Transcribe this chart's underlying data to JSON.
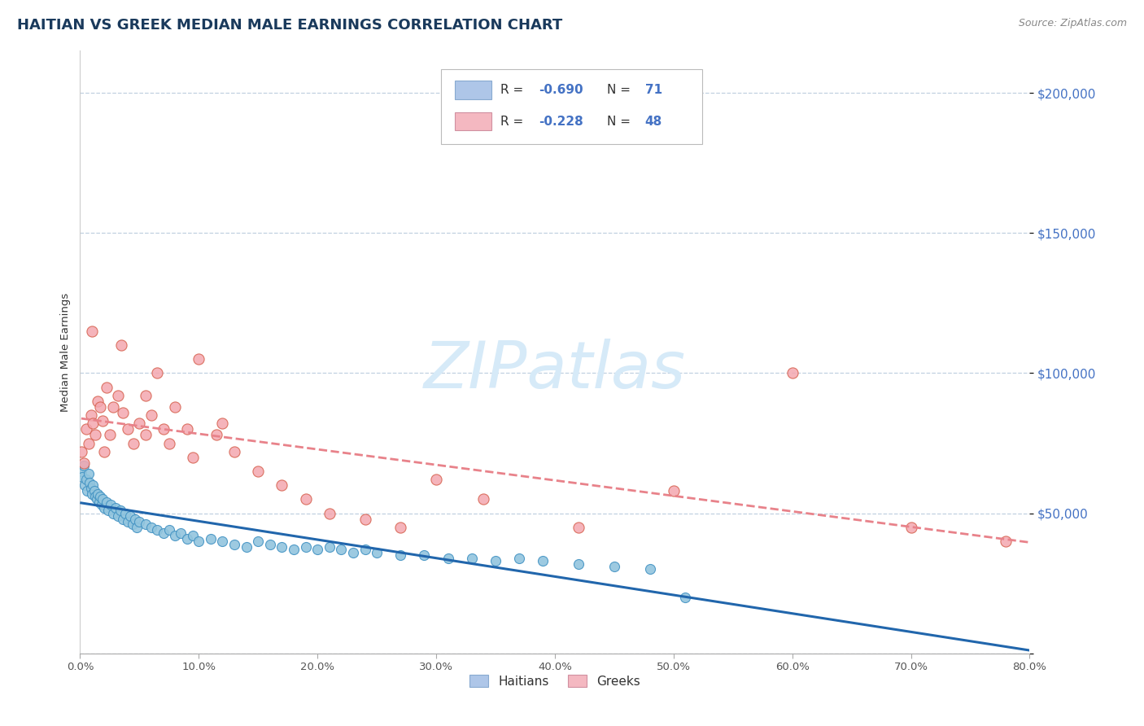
{
  "title": "HAITIAN VS GREEK MEDIAN MALE EARNINGS CORRELATION CHART",
  "source": "Source: ZipAtlas.com",
  "ylabel": "Median Male Earnings",
  "yticks": [
    0,
    50000,
    100000,
    150000,
    200000
  ],
  "ytick_labels": [
    "",
    "$50,000",
    "$100,000",
    "$150,000",
    "$200,000"
  ],
  "xtick_positions": [
    0.0,
    0.1,
    0.2,
    0.3,
    0.4,
    0.5,
    0.6,
    0.7,
    0.8
  ],
  "xtick_labels": [
    "0.0%",
    "10.0%",
    "20.0%",
    "30.0%",
    "40.0%",
    "50.0%",
    "60.0%",
    "70.0%",
    "80.0%"
  ],
  "xmin": 0.0,
  "xmax": 0.8,
  "ymin": 0,
  "ymax": 215000,
  "haitian_color": "#92c5de",
  "haitian_edge": "#4393c3",
  "greek_color": "#f4a7b0",
  "greek_edge": "#d6604d",
  "trendline_haitian_color": "#2166ac",
  "trendline_greek_color": "#e8828a",
  "legend_patch_haitian": "#aec6e8",
  "legend_patch_greek": "#f4b8c1",
  "watermark_color": "#d6eaf8",
  "background_color": "#ffffff",
  "title_color": "#1a3a5c",
  "title_fontsize": 13,
  "source_fontsize": 9,
  "legend_fontsize": 11,
  "tick_label_color_y": "#4472c4",
  "grid_color": "#c0d0e0",
  "haitian_x": [
    0.001,
    0.002,
    0.003,
    0.004,
    0.005,
    0.006,
    0.007,
    0.008,
    0.009,
    0.01,
    0.011,
    0.012,
    0.013,
    0.014,
    0.015,
    0.016,
    0.017,
    0.018,
    0.019,
    0.02,
    0.022,
    0.024,
    0.026,
    0.028,
    0.03,
    0.032,
    0.034,
    0.036,
    0.038,
    0.04,
    0.042,
    0.044,
    0.046,
    0.048,
    0.05,
    0.055,
    0.06,
    0.065,
    0.07,
    0.075,
    0.08,
    0.085,
    0.09,
    0.095,
    0.1,
    0.11,
    0.12,
    0.13,
    0.14,
    0.15,
    0.16,
    0.17,
    0.18,
    0.19,
    0.2,
    0.21,
    0.22,
    0.23,
    0.24,
    0.25,
    0.27,
    0.29,
    0.31,
    0.33,
    0.35,
    0.37,
    0.39,
    0.42,
    0.45,
    0.48,
    0.51
  ],
  "haitian_y": [
    65000,
    63000,
    67000,
    60000,
    62000,
    58000,
    64000,
    61000,
    59000,
    57000,
    60000,
    58000,
    56000,
    55000,
    57000,
    54000,
    56000,
    53000,
    55000,
    52000,
    54000,
    51000,
    53000,
    50000,
    52000,
    49000,
    51000,
    48000,
    50000,
    47000,
    49000,
    46000,
    48000,
    45000,
    47000,
    46000,
    45000,
    44000,
    43000,
    44000,
    42000,
    43000,
    41000,
    42000,
    40000,
    41000,
    40000,
    39000,
    38000,
    40000,
    39000,
    38000,
    37000,
    38000,
    37000,
    38000,
    37000,
    36000,
    37000,
    36000,
    35000,
    35000,
    34000,
    34000,
    33000,
    34000,
    33000,
    32000,
    31000,
    30000,
    20000
  ],
  "greek_x": [
    0.001,
    0.003,
    0.005,
    0.007,
    0.009,
    0.011,
    0.013,
    0.015,
    0.017,
    0.019,
    0.022,
    0.025,
    0.028,
    0.032,
    0.036,
    0.04,
    0.045,
    0.05,
    0.055,
    0.06,
    0.065,
    0.07,
    0.08,
    0.09,
    0.1,
    0.115,
    0.13,
    0.15,
    0.17,
    0.19,
    0.21,
    0.24,
    0.27,
    0.3,
    0.34,
    0.42,
    0.5,
    0.6,
    0.7,
    0.78,
    0.01,
    0.02,
    0.035,
    0.055,
    0.075,
    0.095,
    0.12
  ],
  "greek_y": [
    72000,
    68000,
    80000,
    75000,
    85000,
    82000,
    78000,
    90000,
    88000,
    83000,
    95000,
    78000,
    88000,
    92000,
    86000,
    80000,
    75000,
    82000,
    78000,
    85000,
    100000,
    80000,
    88000,
    80000,
    105000,
    78000,
    72000,
    65000,
    60000,
    55000,
    50000,
    48000,
    45000,
    62000,
    55000,
    45000,
    58000,
    100000,
    45000,
    40000,
    115000,
    72000,
    110000,
    92000,
    75000,
    70000,
    82000
  ]
}
